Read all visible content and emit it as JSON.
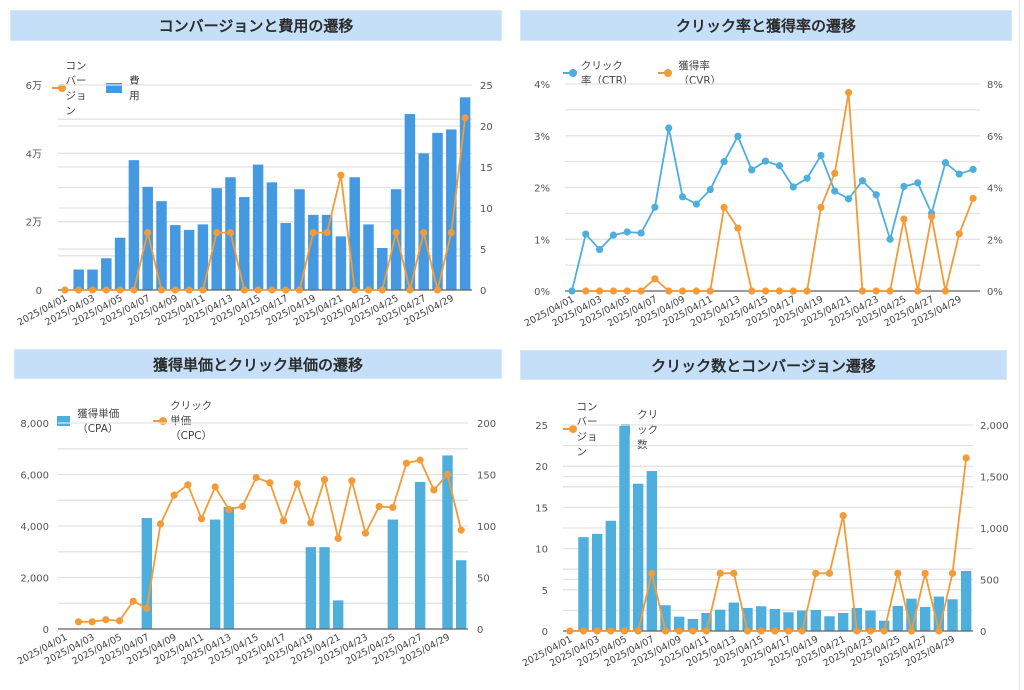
{
  "dates": [
    "2025/04/01",
    "2025/04/02",
    "2025/04/03",
    "2025/04/04",
    "2025/04/05",
    "2025/04/06",
    "2025/04/07",
    "2025/04/08",
    "2025/04/09",
    "2025/04/10",
    "2025/04/11",
    "2025/04/12",
    "2025/04/13",
    "2025/04/14",
    "2025/04/15",
    "2025/04/16",
    "2025/04/17",
    "2025/04/18",
    "2025/04/19",
    "2025/04/20",
    "2025/04/21",
    "2025/04/22",
    "2025/04/23",
    "2025/04/24",
    "2025/04/25",
    "2025/04/26",
    "2025/04/27",
    "2025/04/28",
    "2025/04/29",
    "2025/04/30"
  ],
  "colors": {
    "orange": "#f29b38",
    "blue_cost": "#4499e0",
    "blue_light": "#4eaedc",
    "title_bg": "#c4dff7"
  },
  "chart_data": [
    {
      "id": "conv-cost",
      "type": "bar+line",
      "title": "コンバージョンと費用の遷移",
      "legend": [
        {
          "name": "コンバージョン",
          "kind": "line",
          "color": "#f29b38"
        },
        {
          "name": "費用",
          "kind": "bar",
          "color": "#4499e0"
        }
      ],
      "legend_position": "top-left",
      "x_tick_labels": [
        "2025/04/01",
        "2025/04/03",
        "2025/04/05",
        "2025/04/07",
        "2025/04/09",
        "2025/04/11",
        "2025/04/13",
        "2025/04/15",
        "2025/04/17",
        "2025/04/19",
        "2025/04/21",
        "2025/04/23",
        "2025/04/25",
        "2025/04/27",
        "2025/04/29"
      ],
      "y_left": {
        "label": "費用",
        "range": [
          0,
          60000
        ],
        "ticks": [
          0,
          20000,
          40000,
          60000
        ],
        "tick_labels": [
          "0",
          "2万",
          "4万",
          "6万"
        ]
      },
      "y_right": {
        "label": "コンバージョン",
        "range": [
          0,
          25
        ],
        "ticks": [
          0,
          5,
          10,
          15,
          20,
          25
        ],
        "tick_labels": [
          "0",
          "5",
          "10",
          "15",
          "20",
          "25"
        ]
      },
      "series": [
        {
          "name": "費用",
          "type": "bar",
          "axis": "left",
          "values": [
            0,
            6000,
            6000,
            9300,
            15300,
            38000,
            30200,
            26000,
            19000,
            17600,
            19200,
            29800,
            33000,
            27200,
            36700,
            31500,
            19600,
            29500,
            22000,
            22000,
            15700,
            33000,
            19200,
            12300,
            29500,
            51500,
            40000,
            46000,
            47000,
            56400
          ]
        },
        {
          "name": "コンバージョン",
          "type": "line",
          "axis": "right",
          "values": [
            0,
            0,
            0,
            0,
            0,
            0,
            7,
            0,
            0,
            0,
            0,
            7,
            7,
            0,
            0,
            0,
            0,
            0,
            7,
            7,
            14,
            0,
            0,
            0,
            7,
            0,
            7,
            0,
            7,
            21
          ]
        }
      ],
      "grid": true
    },
    {
      "id": "ctr-cvr",
      "type": "line",
      "title": "クリック率と獲得率の遷移",
      "legend": [
        {
          "name": "クリック率（CTR）",
          "kind": "line",
          "color": "#4eaedc"
        },
        {
          "name": "獲得率（CVR）",
          "kind": "line",
          "color": "#f29b38"
        }
      ],
      "legend_position": "top-left",
      "x_tick_labels": [
        "2025/04/01",
        "2025/04/03",
        "2025/04/05",
        "2025/04/07",
        "2025/04/09",
        "2025/04/11",
        "2025/04/13",
        "2025/04/15",
        "2025/04/17",
        "2025/04/19",
        "2025/04/21",
        "2025/04/23",
        "2025/04/25",
        "2025/04/27",
        "2025/04/29"
      ],
      "y_left": {
        "label": "CTR",
        "range": [
          0,
          4
        ],
        "ticks": [
          0,
          1,
          2,
          3,
          4
        ],
        "tick_labels": [
          "0%",
          "1%",
          "2%",
          "3%",
          "4%"
        ]
      },
      "y_right": {
        "label": "CVR",
        "range": [
          0,
          8
        ],
        "ticks": [
          0,
          2,
          4,
          6,
          8
        ],
        "tick_labels": [
          "0%",
          "2%",
          "4%",
          "6%",
          "8%"
        ]
      },
      "series": [
        {
          "name": "クリック率（CTR）",
          "type": "line",
          "axis": "left",
          "unit": "%",
          "values": [
            0,
            1.1,
            0.8,
            1.08,
            1.14,
            1.12,
            1.62,
            3.15,
            1.82,
            1.68,
            1.96,
            2.5,
            2.99,
            2.34,
            2.51,
            2.42,
            2.01,
            2.18,
            2.62,
            1.93,
            1.78,
            2.13,
            1.86,
            1.0,
            2.02,
            2.09,
            1.5,
            2.48,
            2.26,
            2.35
          ]
        },
        {
          "name": "獲得率（CVR）",
          "type": "line",
          "axis": "right",
          "unit": "%",
          "values": [
            null,
            0,
            0,
            0,
            0,
            0,
            0.47,
            0,
            0,
            0,
            0,
            3.23,
            2.43,
            0,
            0,
            0,
            0,
            0,
            3.23,
            4.55,
            7.67,
            0,
            0,
            0,
            2.78,
            0,
            2.87,
            0,
            2.21,
            3.58
          ]
        }
      ],
      "grid": true
    },
    {
      "id": "cpa-cpc",
      "type": "bar+line",
      "title": "獲得単価とクリック単価の遷移",
      "legend": [
        {
          "name": "獲得単価（CPA）",
          "kind": "bar",
          "color": "#4eaedc"
        },
        {
          "name": "クリック単価（CPC）",
          "kind": "line",
          "color": "#f29b38"
        }
      ],
      "legend_position": "top-left",
      "x_tick_labels": [
        "2025/04/01",
        "2025/04/03",
        "2025/04/05",
        "2025/04/07",
        "2025/04/09",
        "2025/04/11",
        "2025/04/13",
        "2025/04/15",
        "2025/04/17",
        "2025/04/19",
        "2025/04/21",
        "2025/04/23",
        "2025/04/25",
        "2025/04/27",
        "2025/04/29"
      ],
      "y_left": {
        "label": "CPA",
        "range": [
          0,
          8000
        ],
        "ticks": [
          0,
          2000,
          4000,
          6000,
          8000
        ],
        "tick_labels": [
          "0",
          "2,000",
          "4,000",
          "6,000",
          "8,000"
        ]
      },
      "y_right": {
        "label": "CPC",
        "range": [
          0,
          200
        ],
        "ticks": [
          0,
          50,
          100,
          150,
          200
        ],
        "tick_labels": [
          "0",
          "50",
          "100",
          "150",
          "200"
        ]
      },
      "series": [
        {
          "name": "獲得単価（CPA）",
          "type": "bar",
          "axis": "left",
          "values": [
            null,
            null,
            null,
            null,
            null,
            null,
            4310,
            null,
            null,
            null,
            null,
            4250,
            4740,
            null,
            null,
            null,
            null,
            null,
            3180,
            3180,
            1110,
            null,
            null,
            null,
            4250,
            null,
            5710,
            null,
            6740,
            2670
          ]
        },
        {
          "name": "クリック単価（CPC）",
          "type": "line",
          "axis": "right",
          "values": [
            null,
            7,
            7,
            9,
            8,
            27,
            20,
            102,
            130,
            140,
            107,
            138,
            116,
            119,
            147,
            142,
            105,
            141,
            103,
            145,
            88,
            144,
            93,
            119,
            118,
            161,
            164,
            135,
            150,
            96
          ]
        }
      ],
      "grid": true
    },
    {
      "id": "clicks-conv",
      "type": "bar+line",
      "title": "クリック数とコンバージョン遷移",
      "legend": [
        {
          "name": "コンバージョン",
          "kind": "line",
          "color": "#f29b38"
        },
        {
          "name": "クリック数",
          "kind": "bar",
          "color": "#4eaedc"
        }
      ],
      "legend_position": "top-left",
      "x_tick_labels": [
        "2025/04/01",
        "2025/04/03",
        "2025/04/05",
        "2025/04/07",
        "2025/04/09",
        "2025/04/11",
        "2025/04/13",
        "2025/04/15",
        "2025/04/17",
        "2025/04/19",
        "2025/04/21",
        "2025/04/23",
        "2025/04/25",
        "2025/04/27",
        "2025/04/29"
      ],
      "y_left": {
        "label": "コンバージョン",
        "range": [
          0,
          25
        ],
        "ticks": [
          0,
          5,
          10,
          15,
          20,
          25
        ],
        "tick_labels": [
          "0",
          "5",
          "10",
          "15",
          "20",
          "25"
        ]
      },
      "y_right": {
        "label": "クリック数",
        "range": [
          0,
          2000
        ],
        "ticks": [
          0,
          500,
          1000,
          1500,
          2000
        ],
        "tick_labels": [
          "0",
          "500",
          "1,000",
          "1,500",
          "2,000"
        ]
      },
      "series": [
        {
          "name": "クリック数",
          "type": "bar",
          "axis": "right",
          "values": [
            0,
            911,
            943,
            1070,
            1990,
            1430,
            1553,
            250,
            139,
            117,
            175,
            207,
            276,
            224,
            240,
            214,
            182,
            198,
            204,
            143,
            175,
            224,
            198,
            100,
            243,
            314,
            233,
            334,
            308,
            583
          ]
        },
        {
          "name": "コンバージョン",
          "type": "line",
          "axis": "left",
          "values": [
            0,
            0,
            0,
            0,
            0,
            0,
            7,
            0,
            0,
            0,
            0,
            7,
            7,
            0,
            0,
            0,
            0,
            0,
            7,
            7,
            14,
            0,
            0,
            0,
            7,
            0,
            7,
            0,
            7,
            21
          ]
        }
      ],
      "grid": true
    }
  ]
}
